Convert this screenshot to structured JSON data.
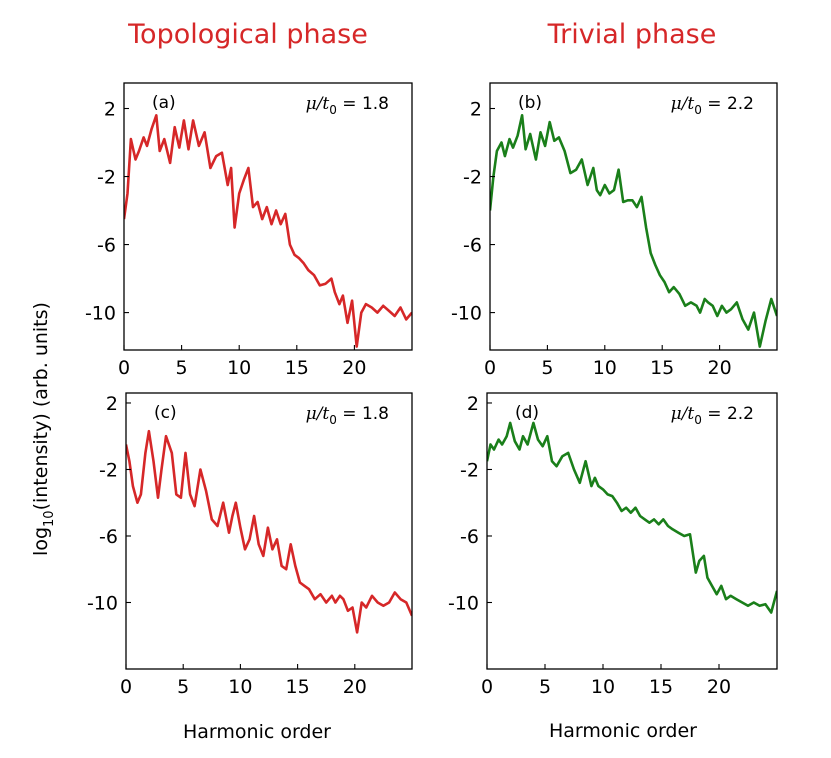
{
  "figure": {
    "column_titles": [
      "Topological phase",
      "Trivial phase"
    ],
    "y_axis_label_main": "log",
    "y_axis_label_sub": "10",
    "y_axis_label_rest": "(intensity) (arb. units)",
    "x_axis_label": "Harmonic order",
    "colors": {
      "title": "#d62728",
      "topological": "#d62728",
      "trivial": "#1a7f1a"
    }
  },
  "chart_data": [
    {
      "type": "line",
      "panel": "(a)",
      "param_symbol": "μ/t",
      "param_sub": "0",
      "param_value": "= 1.8",
      "series_color": "#d62728",
      "xlim": [
        0,
        25
      ],
      "ylim": [
        -12.2,
        3.5
      ],
      "xticks": [
        0,
        5,
        10,
        15,
        20
      ],
      "xtick_labels": [
        "0",
        "5",
        "10",
        "15",
        "20"
      ],
      "yticks": [
        2,
        -2,
        -6,
        -10
      ],
      "ytick_labels": [
        "2",
        "-2",
        "-6",
        "-10"
      ],
      "x": [
        0,
        0.3,
        0.6,
        1.0,
        1.3,
        1.7,
        2.0,
        2.4,
        2.8,
        3.1,
        3.5,
        4.0,
        4.4,
        4.8,
        5.2,
        5.6,
        6.0,
        6.5,
        7.0,
        7.5,
        8.0,
        8.5,
        9.0,
        9.3,
        9.6,
        10.0,
        10.4,
        10.8,
        11.2,
        11.6,
        12.0,
        12.4,
        12.8,
        13.2,
        13.6,
        14.0,
        14.4,
        14.8,
        15.2,
        15.6,
        16.0,
        16.5,
        17.0,
        17.5,
        18.0,
        18.3,
        18.7,
        19.0,
        19.4,
        19.8,
        20.2,
        20.6,
        21.0,
        21.5,
        22.0,
        22.5,
        23.0,
        23.5,
        24.0,
        24.5,
        25.0
      ],
      "y": [
        -4.5,
        -3.0,
        0.2,
        -1.0,
        -0.5,
        0.3,
        -0.2,
        0.8,
        1.6,
        -0.5,
        0.2,
        -1.2,
        0.9,
        -0.3,
        1.3,
        -0.4,
        1.3,
        -0.2,
        0.6,
        -1.5,
        -0.8,
        -0.6,
        -2.5,
        -1.5,
        -5.0,
        -3.0,
        -2.2,
        -1.5,
        -3.8,
        -3.5,
        -4.5,
        -3.8,
        -4.8,
        -4.0,
        -4.8,
        -4.2,
        -6.0,
        -6.6,
        -6.8,
        -7.1,
        -7.5,
        -7.8,
        -8.4,
        -8.3,
        -8.0,
        -8.8,
        -9.5,
        -9.0,
        -10.6,
        -9.3,
        -12.0,
        -10.0,
        -9.5,
        -9.7,
        -10.0,
        -9.6,
        -9.9,
        -10.2,
        -9.7,
        -10.4,
        -10.0
      ]
    },
    {
      "type": "line",
      "panel": "(b)",
      "param_symbol": "μ/t",
      "param_sub": "0",
      "param_value": "= 2.2",
      "series_color": "#1a7f1a",
      "xlim": [
        0,
        25
      ],
      "ylim": [
        -12.2,
        3.5
      ],
      "xticks": [
        0,
        5,
        10,
        15,
        20
      ],
      "xtick_labels": [
        "0",
        "5",
        "10",
        "15",
        "20"
      ],
      "yticks": [
        2,
        -2,
        -6,
        -10
      ],
      "ytick_labels": [
        "2",
        "-2",
        "-6",
        "-10"
      ],
      "x": [
        0,
        0.3,
        0.6,
        1.0,
        1.3,
        1.7,
        2.0,
        2.4,
        2.8,
        3.1,
        3.5,
        4.0,
        4.4,
        4.8,
        5.2,
        5.6,
        6.0,
        6.5,
        7.0,
        7.5,
        8.0,
        8.5,
        9.0,
        9.3,
        9.6,
        10.0,
        10.4,
        10.8,
        11.2,
        11.6,
        12.0,
        12.4,
        12.8,
        13.2,
        13.6,
        14.0,
        14.4,
        14.8,
        15.2,
        15.6,
        16.0,
        16.5,
        17.0,
        17.5,
        18.0,
        18.3,
        18.7,
        19.0,
        19.4,
        19.8,
        20.2,
        20.6,
        21.0,
        21.5,
        22.0,
        22.5,
        23.0,
        23.5,
        24.0,
        24.5,
        25.0
      ],
      "y": [
        -4.0,
        -2.0,
        -0.5,
        0.0,
        -0.8,
        0.2,
        -0.3,
        0.4,
        1.6,
        -0.4,
        0.5,
        -1.0,
        0.6,
        -0.2,
        1.2,
        0.1,
        0.3,
        -0.5,
        -1.8,
        -1.6,
        -1.0,
        -2.5,
        -1.5,
        -2.8,
        -3.1,
        -2.5,
        -3.0,
        -2.8,
        -1.6,
        -3.5,
        -3.4,
        -3.4,
        -3.8,
        -3.2,
        -5.0,
        -6.5,
        -7.2,
        -7.8,
        -8.2,
        -8.8,
        -8.5,
        -8.9,
        -9.6,
        -9.4,
        -9.6,
        -10.0,
        -9.2,
        -9.4,
        -9.6,
        -10.2,
        -9.6,
        -10.0,
        -9.8,
        -9.4,
        -10.4,
        -11.0,
        -10.0,
        -12.0,
        -10.5,
        -9.2,
        -10.2
      ]
    },
    {
      "type": "line",
      "panel": "(c)",
      "param_symbol": "μ/t",
      "param_sub": "0",
      "param_value": "= 1.8",
      "series_color": "#d62728",
      "xlim": [
        0,
        25
      ],
      "ylim": [
        -14.0,
        2.6
      ],
      "xticks": [
        0,
        5,
        10,
        15,
        20
      ],
      "xtick_labels": [
        "0",
        "5",
        "10",
        "15",
        "20"
      ],
      "yticks": [
        2,
        -2,
        -6,
        -10
      ],
      "ytick_labels": [
        "2",
        "-2",
        "-6",
        "-10"
      ],
      "x": [
        0,
        0.3,
        0.6,
        1.0,
        1.3,
        1.7,
        2.0,
        2.4,
        2.8,
        3.1,
        3.5,
        4.0,
        4.4,
        4.8,
        5.2,
        5.6,
        6.0,
        6.5,
        7.0,
        7.5,
        8.0,
        8.5,
        9.0,
        9.3,
        9.6,
        10.0,
        10.4,
        10.8,
        11.2,
        11.6,
        12.0,
        12.4,
        12.8,
        13.2,
        13.6,
        14.0,
        14.4,
        14.8,
        15.2,
        15.6,
        16.0,
        16.5,
        17.0,
        17.5,
        18.0,
        18.3,
        18.7,
        19.0,
        19.4,
        19.8,
        20.2,
        20.6,
        21.0,
        21.5,
        22.0,
        22.5,
        23.0,
        23.5,
        24.0,
        24.5,
        25.0
      ],
      "y": [
        -0.5,
        -1.5,
        -3.0,
        -4.0,
        -3.5,
        -1.0,
        0.3,
        -1.5,
        -3.7,
        -2.0,
        0.0,
        -1.0,
        -3.5,
        -3.7,
        -1.0,
        -3.5,
        -4.2,
        -2.0,
        -3.3,
        -5.0,
        -5.4,
        -4.0,
        -5.8,
        -4.8,
        -4.0,
        -5.5,
        -6.8,
        -6.2,
        -4.8,
        -6.5,
        -7.2,
        -5.5,
        -6.8,
        -6.2,
        -7.8,
        -8.0,
        -6.5,
        -7.8,
        -8.8,
        -9.0,
        -9.2,
        -9.8,
        -9.5,
        -10.0,
        -9.6,
        -10.0,
        -9.6,
        -9.8,
        -10.5,
        -10.3,
        -11.8,
        -10.0,
        -10.3,
        -9.6,
        -10.0,
        -10.2,
        -10.0,
        -9.4,
        -9.8,
        -10.0,
        -10.8
      ]
    },
    {
      "type": "line",
      "panel": "(d)",
      "param_symbol": "μ/t",
      "param_sub": "0",
      "param_value": "= 2.2",
      "series_color": "#1a7f1a",
      "xlim": [
        0,
        25
      ],
      "ylim": [
        -14.0,
        2.6
      ],
      "xticks": [
        0,
        5,
        10,
        15,
        20
      ],
      "xtick_labels": [
        "0",
        "5",
        "10",
        "15",
        "20"
      ],
      "yticks": [
        2,
        -2,
        -6,
        -10
      ],
      "ytick_labels": [
        "2",
        "-2",
        "-6",
        "-10"
      ],
      "x": [
        0,
        0.3,
        0.6,
        1.0,
        1.3,
        1.7,
        2.0,
        2.4,
        2.8,
        3.1,
        3.5,
        4.0,
        4.4,
        4.8,
        5.2,
        5.6,
        6.0,
        6.5,
        7.0,
        7.5,
        8.0,
        8.5,
        9.0,
        9.3,
        9.6,
        10.0,
        10.4,
        10.8,
        11.2,
        11.6,
        12.0,
        12.4,
        12.8,
        13.2,
        13.6,
        14.0,
        14.4,
        14.8,
        15.2,
        15.6,
        16.0,
        16.5,
        17.0,
        17.5,
        18.0,
        18.3,
        18.7,
        19.0,
        19.4,
        19.8,
        20.2,
        20.6,
        21.0,
        21.5,
        22.0,
        22.5,
        23.0,
        23.5,
        24.0,
        24.5,
        25.0
      ],
      "y": [
        -1.5,
        -0.5,
        -0.8,
        -0.2,
        -0.5,
        0.0,
        0.8,
        -0.3,
        -0.8,
        0.0,
        -0.5,
        0.8,
        -0.2,
        -0.6,
        0.0,
        -1.5,
        -1.8,
        -1.2,
        -1.0,
        -2.0,
        -2.8,
        -1.5,
        -3.0,
        -2.5,
        -3.0,
        -3.2,
        -3.5,
        -3.6,
        -4.0,
        -4.5,
        -4.3,
        -4.6,
        -4.3,
        -4.8,
        -5.0,
        -5.2,
        -5.0,
        -5.3,
        -5.0,
        -5.4,
        -5.6,
        -5.8,
        -6.0,
        -5.9,
        -8.2,
        -7.5,
        -7.2,
        -8.5,
        -9.0,
        -9.5,
        -9.0,
        -9.8,
        -9.6,
        -9.8,
        -10.0,
        -10.2,
        -10.0,
        -10.2,
        -10.1,
        -10.6,
        -9.3
      ]
    }
  ]
}
